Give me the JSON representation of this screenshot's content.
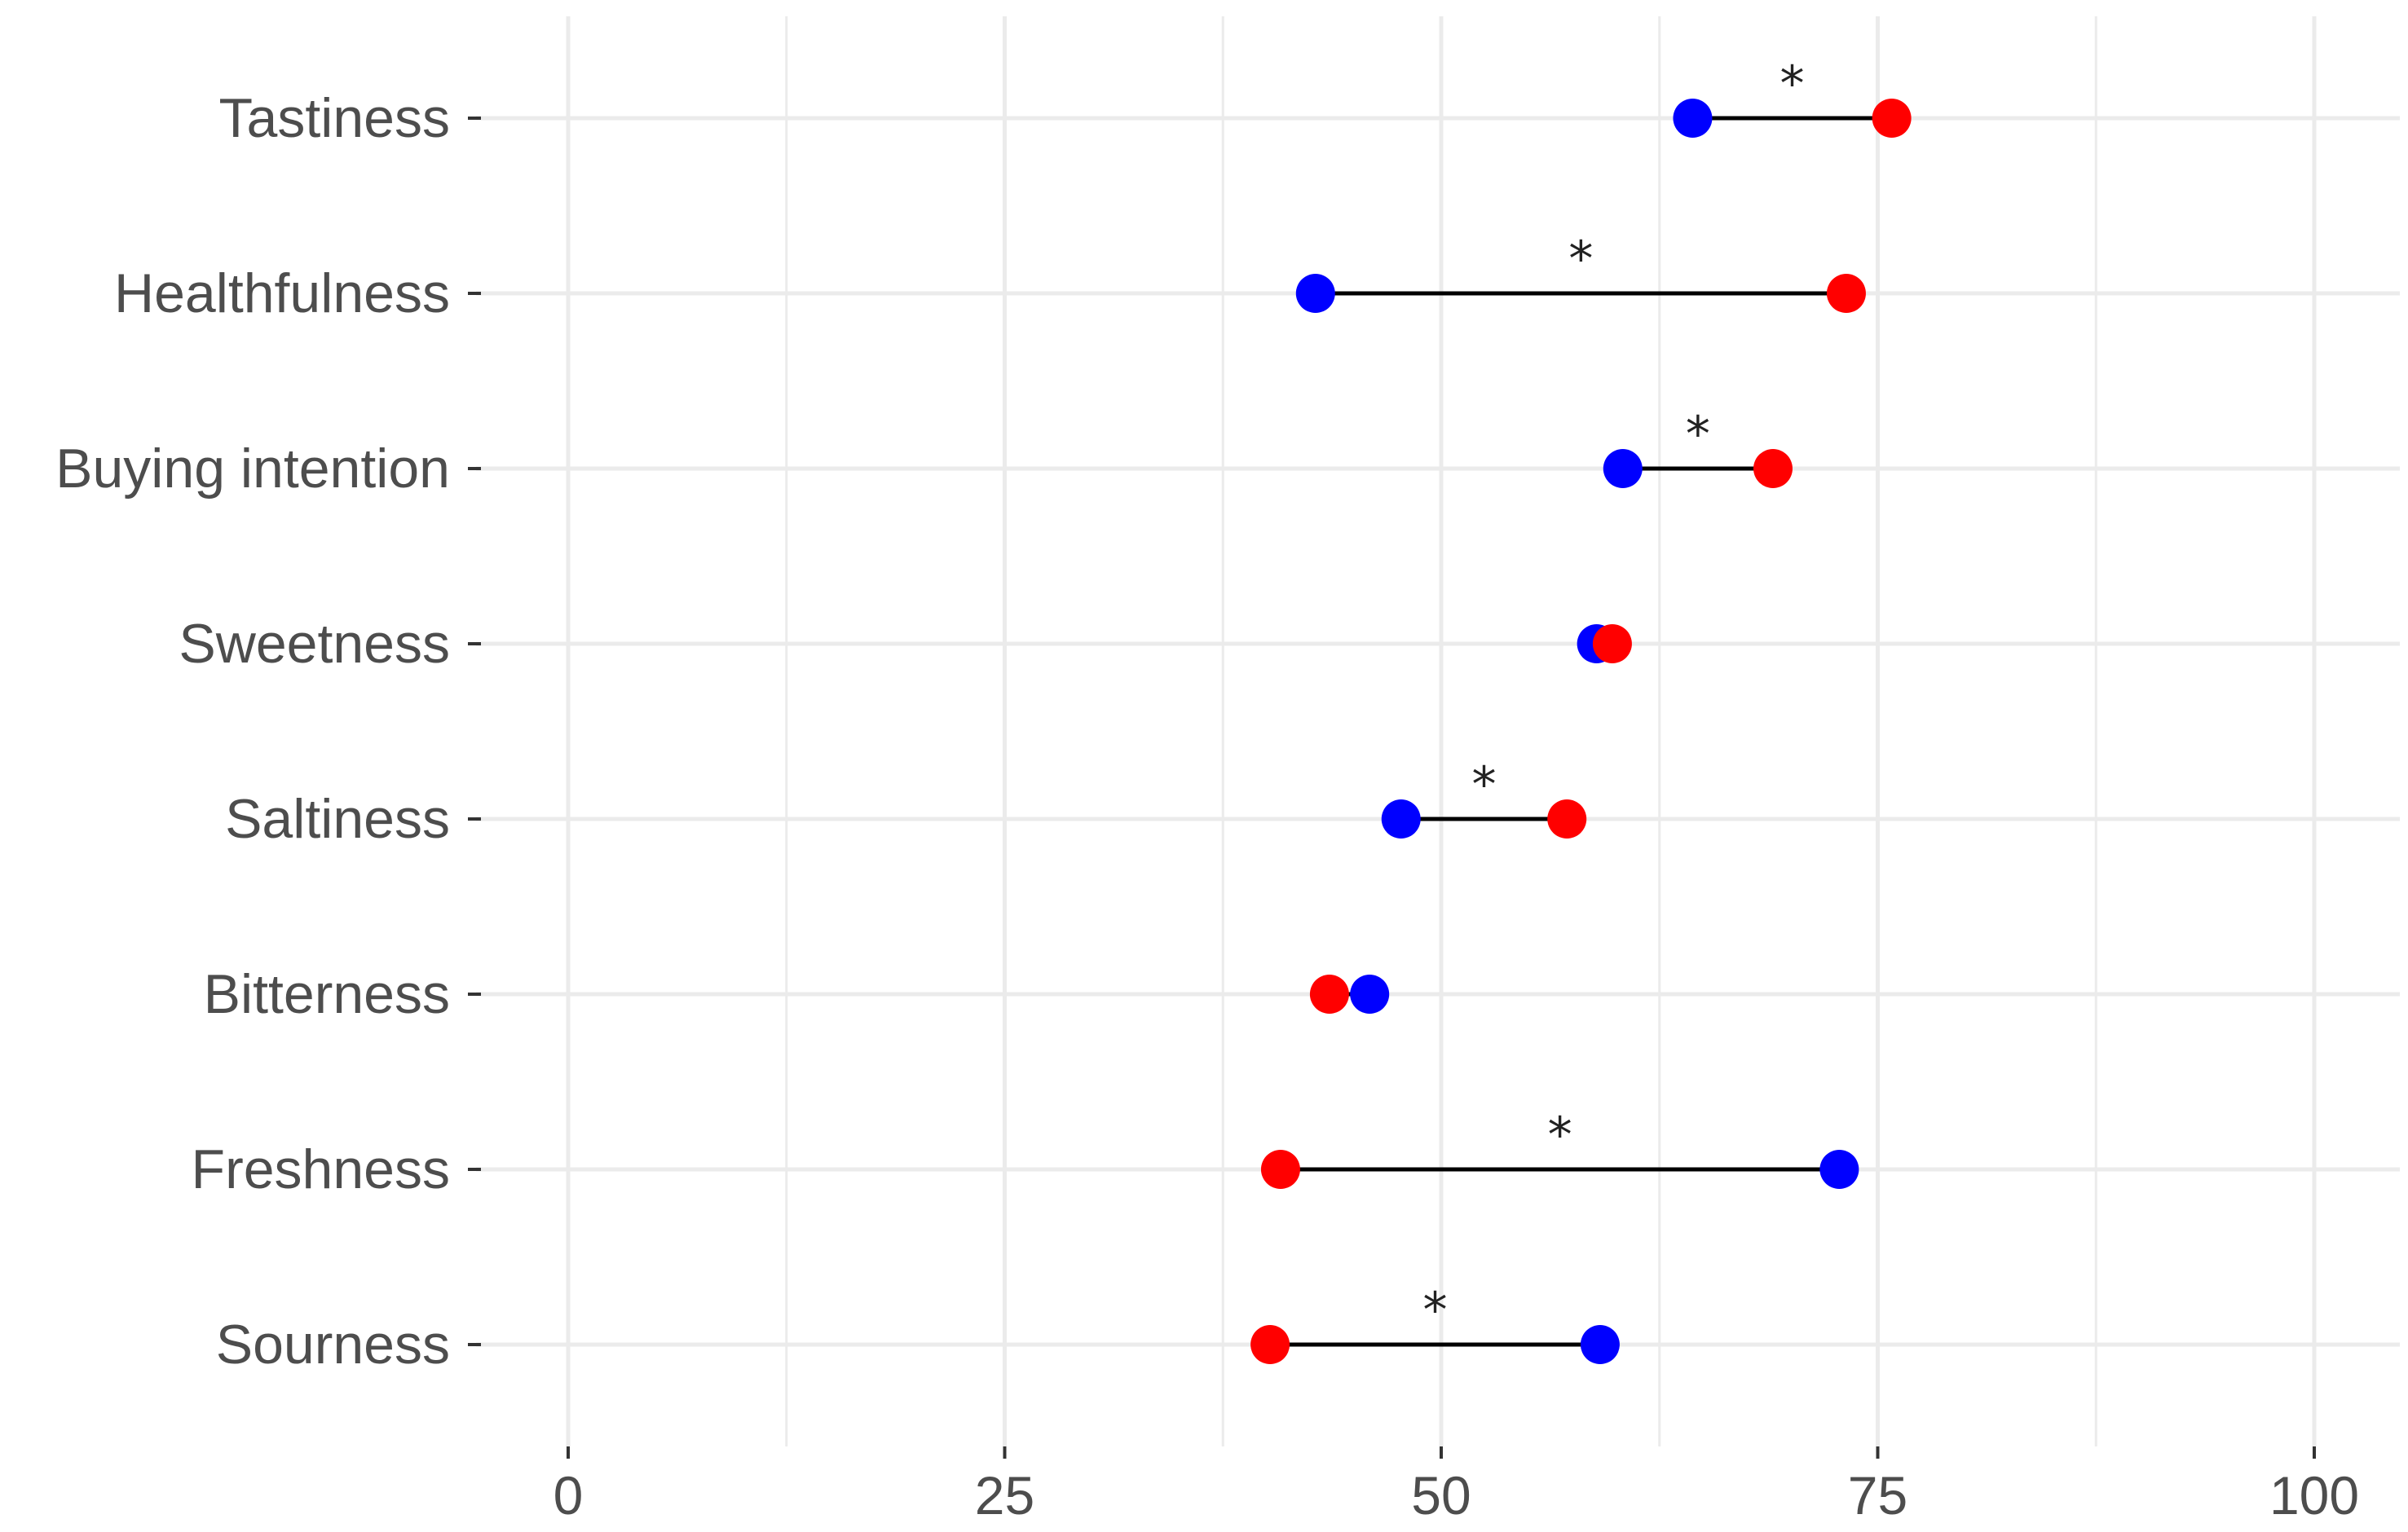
{
  "chart_data": {
    "type": "dumbbell",
    "title": "",
    "xlabel": "",
    "ylabel": "",
    "xlim": [
      -3,
      103
    ],
    "x_ticks": [
      0,
      25,
      50,
      75,
      100
    ],
    "x_tick_labels": [
      "0",
      "25",
      "50",
      "75",
      "100"
    ],
    "grid": true,
    "legend": "none",
    "colors": {
      "red": "#ff0000",
      "blue": "#0000ff",
      "segment": "#000000",
      "grid": "#ebebeb"
    },
    "categories": [
      "Tastiness",
      "Healthfulness",
      "Buying intention",
      "Sweetness",
      "Saltiness",
      "Bitterness",
      "Freshness",
      "Sourness"
    ],
    "series": [
      {
        "color": "red",
        "values": [
          75.8,
          73.2,
          69.0,
          59.8,
          57.2,
          43.6,
          40.8,
          40.2
        ]
      },
      {
        "color": "blue",
        "values": [
          64.4,
          42.8,
          60.4,
          58.9,
          47.7,
          45.9,
          72.8,
          59.1
        ]
      }
    ],
    "significance_marker": "*",
    "significant": [
      true,
      true,
      true,
      false,
      true,
      false,
      true,
      true
    ]
  }
}
